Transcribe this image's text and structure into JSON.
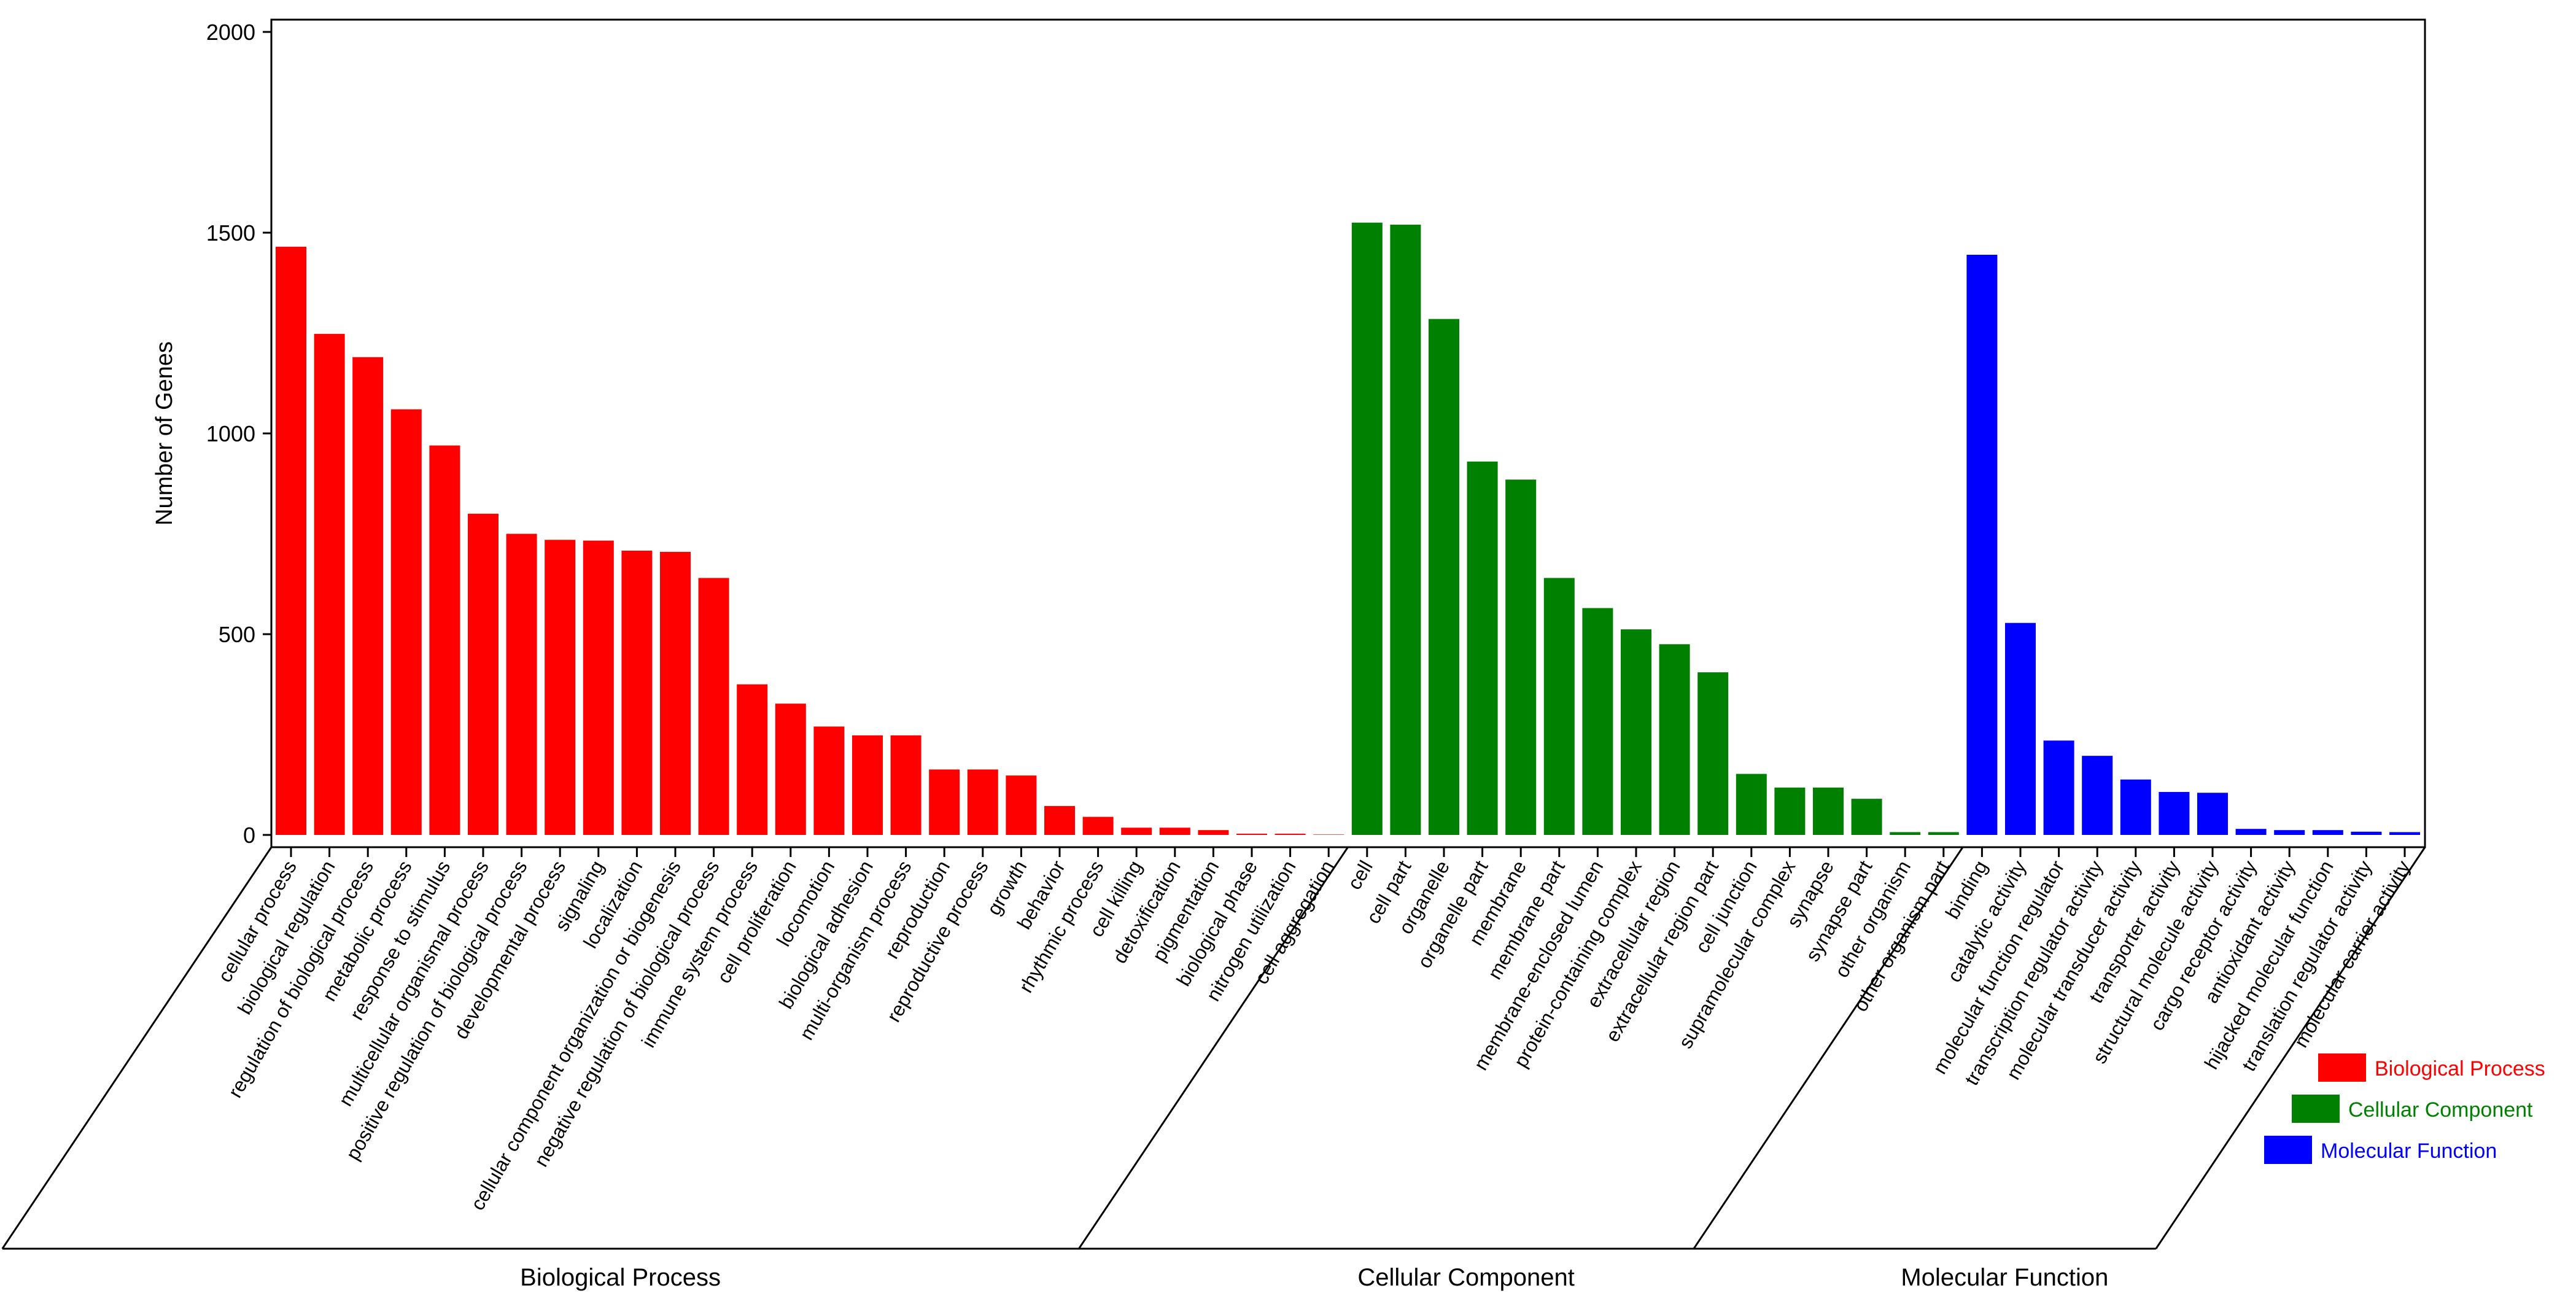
{
  "chart_data": {
    "type": "bar",
    "ylabel": "Number of Genes",
    "ylim": [
      0,
      2000
    ],
    "yticks": [
      0,
      500,
      1000,
      1500,
      2000
    ],
    "grid": false,
    "legend_position": "bottom-right",
    "groups": [
      {
        "name": "Biological Process",
        "color": "#ff0000",
        "categories": [
          "cellular process",
          "biological regulation",
          "regulation of biological process",
          "metabolic process",
          "response to stimulus",
          "multicellular organismal process",
          "positive regulation of biological process",
          "developmental process",
          "signaling",
          "localization",
          "cellular component organization or biogenesis",
          "negative regulation of biological process",
          "immune system process",
          "cell proliferation",
          "locomotion",
          "biological adhesion",
          "multi-organism process",
          "reproduction",
          "reproductive process",
          "growth",
          "behavior",
          "rhythmic process",
          "cell killing",
          "detoxification",
          "pigmentation",
          "biological phase",
          "nitrogen utilization",
          "cell aggregation"
        ],
        "values": [
          1465,
          1248,
          1190,
          1060,
          970,
          800,
          750,
          735,
          733,
          708,
          705,
          640,
          375,
          327,
          270,
          248,
          248,
          163,
          163,
          148,
          72,
          45,
          18,
          18,
          12,
          3,
          3,
          1
        ]
      },
      {
        "name": "Cellular Component",
        "color": "#008000",
        "categories": [
          "cell",
          "cell part",
          "organelle",
          "organelle part",
          "membrane",
          "membrane part",
          "membrane-enclosed lumen",
          "protein-containing complex",
          "extracellular region",
          "extracellular region part",
          "cell junction",
          "supramolecular complex",
          "synapse",
          "synapse part",
          "other organism",
          "other organism part"
        ],
        "values": [
          1525,
          1520,
          1285,
          930,
          885,
          640,
          565,
          512,
          475,
          405,
          152,
          118,
          118,
          90,
          7,
          7
        ]
      },
      {
        "name": "Molecular Function",
        "color": "#0000ff",
        "categories": [
          "binding",
          "catalytic activity",
          "molecular function regulator",
          "transcription regulator activity",
          "molecular transducer activity",
          "transporter activity",
          "structural molecule activity",
          "cargo receptor activity",
          "antioxidant activity",
          "hijacked molecular function",
          "translation regulator activity",
          "molecular carrier activity"
        ],
        "values": [
          1445,
          528,
          235,
          197,
          138,
          107,
          105,
          15,
          12,
          12,
          8,
          7
        ]
      }
    ]
  }
}
